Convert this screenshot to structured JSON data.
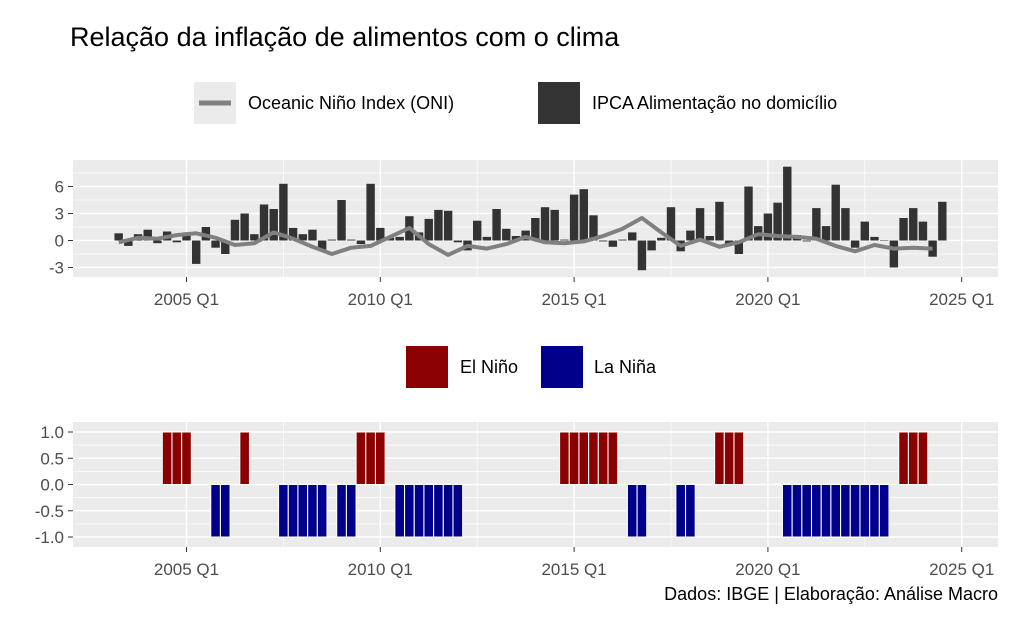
{
  "title": "Relação da inflação de alimentos com o clima",
  "caption": "Dados: IBGE | Elaboração: Análise Macro",
  "chart_data": [
    {
      "type": "bar+line",
      "legend_position": "top",
      "grid": true,
      "legend": [
        {
          "name": "Oceanic Niño Index (ONI)",
          "kind": "line",
          "color": "#808080"
        },
        {
          "name": "IPCA Alimentação no domicílio",
          "kind": "bar",
          "color": "#333333"
        }
      ],
      "x_ticks": [
        "2005 Q1",
        "2010 Q1",
        "2015 Q1",
        "2020 Q1",
        "2025 Q1"
      ],
      "y_ticks": [
        "6",
        "3",
        "0",
        "-3"
      ],
      "ylim": [
        -3.5,
        8.5
      ],
      "x_start_year": 2003,
      "x_start_quarter": 2,
      "series": [
        {
          "name": "IPCA Alimentação no domicílio",
          "kind": "bar",
          "values": [
            0.8,
            -0.6,
            0.7,
            1.2,
            -0.3,
            1.0,
            -0.2,
            0.9,
            -2.6,
            1.5,
            -0.8,
            -1.5,
            2.3,
            3.0,
            0.7,
            4.0,
            3.5,
            6.3,
            1.4,
            0.7,
            1.2,
            -1.0,
            0.1,
            4.5,
            0.1,
            -0.4,
            6.3,
            1.4,
            0.3,
            0.4,
            2.7,
            0.9,
            2.4,
            3.4,
            3.3,
            -0.2,
            -1.1,
            2.2,
            0.4,
            3.5,
            1.3,
            0.5,
            1.1,
            2.5,
            3.7,
            3.4,
            0.1,
            5.1,
            5.7,
            2.8,
            -0.1,
            -0.7,
            0.1,
            0.9,
            -3.3,
            -1.1,
            0.3,
            3.7,
            -1.2,
            1.1,
            3.6,
            0.5,
            4.3,
            -0.5,
            -1.5,
            6.0,
            1.6,
            3.0,
            4.2,
            8.2,
            0.6,
            -0.1,
            3.6,
            1.6,
            6.2,
            3.6,
            -0.8,
            2.1,
            0.4,
            0.0,
            -3.0,
            2.5,
            3.6,
            2.1,
            -1.8,
            4.3
          ]
        },
        {
          "name": "Oceanic Niño Index (ONI)",
          "kind": "line",
          "x_values": [
            0,
            2,
            4,
            6,
            8,
            10,
            12,
            14,
            16,
            18,
            20,
            22,
            24,
            26,
            28,
            30,
            32,
            34,
            36,
            38,
            40,
            42,
            44,
            46,
            48,
            50,
            52,
            54,
            56,
            58,
            60,
            62,
            64,
            66,
            68,
            70,
            72,
            74,
            76,
            78,
            80,
            82,
            84
          ],
          "values": [
            -0.2,
            0.3,
            0.2,
            0.6,
            0.8,
            0.3,
            -0.5,
            -0.3,
            0.9,
            0.2,
            -0.7,
            -1.5,
            -0.8,
            -0.6,
            0.4,
            1.4,
            -0.4,
            -1.6,
            -0.6,
            -0.9,
            -0.4,
            0.4,
            -0.2,
            -0.3,
            -0.1,
            0.5,
            1.3,
            2.5,
            0.9,
            -0.6,
            0.1,
            -0.7,
            -0.2,
            0.7,
            0.5,
            0.4,
            0.2,
            -0.6,
            -1.2,
            -0.5,
            -0.9,
            -0.8,
            -0.9
          ]
        }
      ]
    },
    {
      "type": "bar",
      "legend_position": "top",
      "grid": true,
      "legend": [
        {
          "name": "El Niño",
          "color": "#8B0000"
        },
        {
          "name": "La Niña",
          "color": "#00008B"
        }
      ],
      "x_ticks": [
        "2005 Q1",
        "2010 Q1",
        "2015 Q1",
        "2020 Q1",
        "2025 Q1"
      ],
      "y_ticks": [
        "1.0",
        "0.5",
        "0.0",
        "-0.5",
        "-1.0"
      ],
      "ylim": [
        -1.0,
        1.0
      ],
      "series": [
        {
          "name": "El Niño",
          "quarters": [
            "2004 Q3",
            "2004 Q4",
            "2005 Q1",
            "2006 Q3",
            "2009 Q3",
            "2009 Q4",
            "2010 Q1",
            "2014 Q4",
            "2015 Q1",
            "2015 Q2",
            "2015 Q3",
            "2015 Q4",
            "2016 Q1",
            "2018 Q4",
            "2019 Q1",
            "2019 Q2",
            "2023 Q3",
            "2023 Q4",
            "2024 Q1"
          ],
          "value": 1
        },
        {
          "name": "La Niña",
          "quarters": [
            "2005 Q4",
            "2006 Q1",
            "2007 Q3",
            "2007 Q4",
            "2008 Q1",
            "2008 Q2",
            "2008 Q3",
            "2009 Q1",
            "2009 Q2",
            "2010 Q3",
            "2010 Q4",
            "2011 Q1",
            "2011 Q2",
            "2011 Q3",
            "2011 Q4",
            "2012 Q1",
            "2016 Q3",
            "2016 Q4",
            "2017 Q4",
            "2018 Q1",
            "2020 Q3",
            "2020 Q4",
            "2021 Q1",
            "2021 Q2",
            "2021 Q3",
            "2021 Q4",
            "2022 Q1",
            "2022 Q2",
            "2022 Q3",
            "2022 Q4",
            "2023 Q1"
          ],
          "value": -1
        }
      ]
    }
  ]
}
